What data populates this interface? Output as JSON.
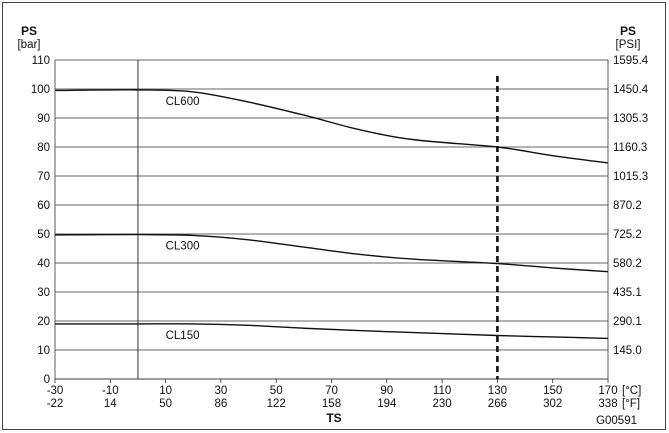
{
  "chart_data": {
    "type": "line",
    "left_axis": {
      "label": "PS",
      "unit": "[bar]",
      "ticks": [
        0,
        10,
        20,
        30,
        40,
        50,
        60,
        70,
        80,
        90,
        100,
        110
      ],
      "range": [
        0,
        110
      ]
    },
    "right_axis": {
      "label": "PS",
      "unit": "[PSI]",
      "ticks": [
        "145.0",
        "290.1",
        "435.1",
        "580.2",
        "725.2",
        "870.2",
        "1015.3",
        "1160.3",
        "1305.3",
        "1450.4",
        "1595.4"
      ]
    },
    "x_axis": {
      "label": "TS",
      "celsius_ticks": [
        -30,
        -10,
        10,
        30,
        50,
        70,
        90,
        110,
        130,
        150,
        170
      ],
      "celsius_unit": "[°C]",
      "fahrenheit_ticks": [
        -22,
        14,
        50,
        86,
        122,
        158,
        194,
        230,
        266,
        302,
        338
      ],
      "fahrenheit_unit": "[°F]",
      "range": [
        -30,
        170
      ]
    },
    "reference_lines": {
      "solid_x": 0,
      "dashed_x": 130
    },
    "series": [
      {
        "name": "CL600",
        "x": [
          -30,
          0,
          20,
          40,
          60,
          80,
          100,
          130,
          150,
          170
        ],
        "y": [
          99.5,
          99.7,
          99,
          95.5,
          91,
          86,
          82.5,
          80,
          77,
          74.5
        ]
      },
      {
        "name": "CL300",
        "x": [
          -30,
          0,
          20,
          40,
          60,
          80,
          100,
          130,
          150,
          170
        ],
        "y": [
          49.7,
          49.8,
          49.5,
          48,
          45.5,
          43,
          41.3,
          39.8,
          38.3,
          37
        ]
      },
      {
        "name": "CL150",
        "x": [
          -30,
          0,
          20,
          40,
          60,
          80,
          100,
          130,
          150,
          170
        ],
        "y": [
          19,
          19,
          19,
          18.5,
          17.5,
          16.7,
          16,
          15,
          14.5,
          14
        ]
      }
    ]
  },
  "figure_id": "G00591"
}
